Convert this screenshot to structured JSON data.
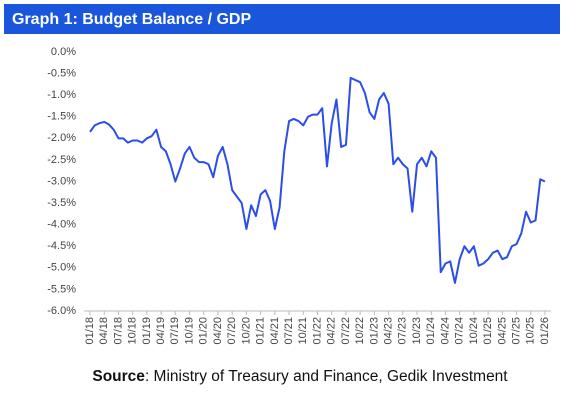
{
  "chart_data": {
    "type": "line",
    "title": "Graph 1: Budget Balance / GDP",
    "source_label": "Source",
    "source_text": ": Ministry of Treasury and Finance, Gedik Investment",
    "categories": [
      "01/18",
      null,
      null,
      "04/18",
      null,
      null,
      "07/18",
      null,
      null,
      "10/18",
      null,
      null,
      "01/19",
      null,
      null,
      "04/19",
      null,
      null,
      "07/19",
      null,
      null,
      "10/19",
      null,
      null,
      "01/20",
      null,
      null,
      "04/20",
      null,
      null,
      "07/20",
      null,
      null,
      "10/20",
      null,
      null,
      "01/21",
      null,
      null,
      "04/21",
      null,
      null,
      "07/21",
      null,
      null,
      "10/21",
      null,
      null,
      "01/22",
      null,
      null,
      "04/22",
      null,
      null,
      "07/22",
      null,
      null,
      "10/22",
      null,
      null,
      "01/23",
      null,
      null,
      "04/23",
      null,
      null,
      "07/23",
      null,
      null,
      "10/23",
      null,
      null,
      "01/24",
      null,
      null,
      "04/24",
      null,
      null,
      "07/24",
      null,
      null,
      "10/24",
      null,
      null,
      "01/25",
      null,
      null,
      "04/25",
      null,
      null,
      "07/25",
      null,
      null,
      "10/25",
      null,
      null,
      "01/26"
    ],
    "series": [
      {
        "color": "#2b4ee8",
        "values": [
          -1.85,
          -1.7,
          -1.65,
          -1.62,
          -1.68,
          -1.8,
          -2.0,
          -2.0,
          -2.1,
          -2.05,
          -2.05,
          -2.1,
          -2.0,
          -1.95,
          -1.8,
          -2.2,
          -2.3,
          -2.6,
          -3.0,
          -2.7,
          -2.35,
          -2.2,
          -2.45,
          -2.55,
          -2.55,
          -2.6,
          -2.9,
          -2.4,
          -2.2,
          -2.6,
          -3.2,
          -3.35,
          -3.5,
          -4.1,
          -3.55,
          -3.8,
          -3.3,
          -3.2,
          -3.45,
          -4.1,
          -3.6,
          -2.3,
          -1.6,
          -1.55,
          -1.6,
          -1.7,
          -1.5,
          -1.45,
          -1.45,
          -1.3,
          -2.65,
          -1.65,
          -1.1,
          -2.2,
          -2.15,
          -0.6,
          -0.65,
          -0.7,
          -0.95,
          -1.4,
          -1.55,
          -1.1,
          -0.95,
          -1.2,
          -2.6,
          -2.45,
          -2.6,
          -2.7,
          -3.7,
          -2.6,
          -2.45,
          -2.65,
          -2.3,
          -2.45,
          -5.1,
          -4.9,
          -4.85,
          -5.35,
          -4.8,
          -4.5,
          -4.65,
          -4.5,
          -4.95,
          -4.9,
          -4.8,
          -4.65,
          -4.6,
          -4.8,
          -4.75,
          -4.5,
          -4.45,
          -4.2,
          -3.7,
          -3.95,
          -3.9,
          -2.95,
          -3.0
        ]
      }
    ],
    "ylim": [
      -6,
      0
    ],
    "yticks": [
      {
        "value": 0,
        "label": "0.0%"
      },
      {
        "value": -0.5,
        "label": "-0.5%"
      },
      {
        "value": -1,
        "label": "-1.0%"
      },
      {
        "value": -1.5,
        "label": "-1.5%"
      },
      {
        "value": -2,
        "label": "-2.0%"
      },
      {
        "value": -2.5,
        "label": "-2.5%"
      },
      {
        "value": -3,
        "label": "-3.0%"
      },
      {
        "value": -3.5,
        "label": "-3.5%"
      },
      {
        "value": -4,
        "label": "-4.0%"
      },
      {
        "value": -4.5,
        "label": "-4.5%"
      },
      {
        "value": -5,
        "label": "-5.0%"
      },
      {
        "value": -5.5,
        "label": "-5.5%"
      },
      {
        "value": -6,
        "label": "-6.0%"
      }
    ],
    "grid": false
  }
}
